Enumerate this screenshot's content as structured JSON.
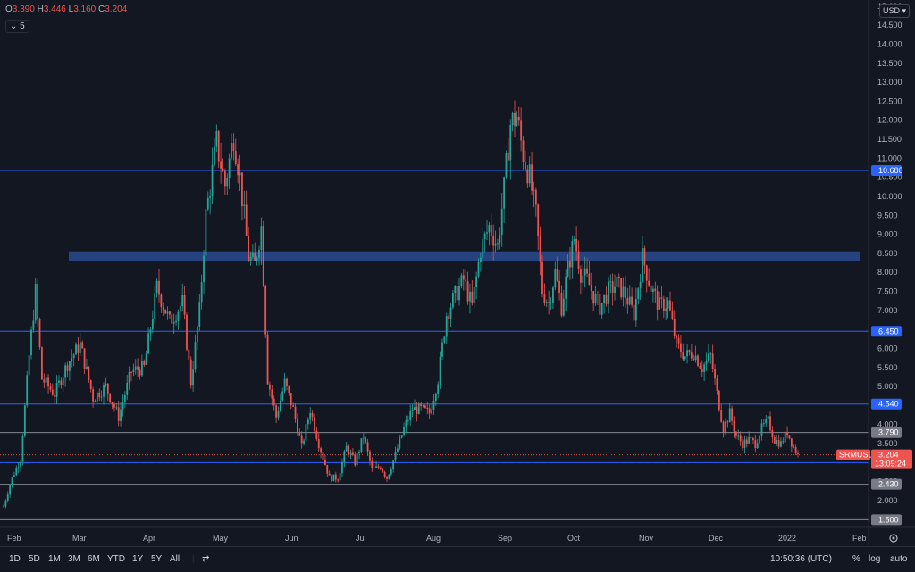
{
  "header": {
    "o_label": "O",
    "o_value": "3.390",
    "h_label": "H",
    "h_value": "3.446",
    "l_label": "L",
    "l_value": "3.160",
    "c_label": "C",
    "c_value": "3.204",
    "indicator_count": "5",
    "currency": "USD"
  },
  "bottom_bar": {
    "ranges": [
      "1D",
      "5D",
      "1M",
      "3M",
      "6M",
      "YTD",
      "1Y",
      "5Y",
      "All"
    ],
    "time": "10:50:36 (UTC)",
    "percent": "%",
    "log": "log",
    "auto": "auto"
  },
  "colors": {
    "background": "#131722",
    "up": "#26a69a",
    "down": "#ef5350",
    "hline": "#2962ff",
    "zone": "#2a4a8f",
    "grey_line": "#9598a1"
  },
  "chart_data": {
    "type": "candlestick",
    "symbol": "SRMUSD",
    "last_price": "3.204",
    "countdown": "13:09:24",
    "y_ticks": [
      "15.000",
      "14.500",
      "14.000",
      "13.500",
      "13.000",
      "12.500",
      "12.000",
      "11.500",
      "11.000",
      "10.500",
      "10.000",
      "9.500",
      "9.000",
      "8.500",
      "8.000",
      "7.500",
      "7.000",
      "6.500",
      "6.000",
      "5.500",
      "5.000",
      "4.500",
      "4.000",
      "3.500",
      "3.000",
      "2.500",
      "2.000",
      "1.500"
    ],
    "x_ticks": [
      "Feb",
      "Mar",
      "Apr",
      "May",
      "Jun",
      "Jul",
      "Aug",
      "Sep",
      "Oct",
      "Nov",
      "Dec",
      "2022",
      "Feb"
    ],
    "blue_levels": [
      {
        "value": 10.68,
        "label": "10.680"
      },
      {
        "value": 6.45,
        "label": "6.450"
      },
      {
        "value": 4.54,
        "label": "4.540"
      },
      {
        "value": 3.0,
        "label": "3.000"
      }
    ],
    "grey_levels": [
      {
        "value": 3.79,
        "label": "3.790"
      },
      {
        "value": 2.43,
        "label": "2.430"
      },
      {
        "value": 1.5,
        "label": "1.500"
      }
    ],
    "zone": {
      "from": 8.3,
      "to": 8.55
    },
    "monthly_closes": [
      {
        "month": "Feb",
        "value": 2.0
      },
      {
        "month": "Mar",
        "value": 6.2
      },
      {
        "month": "Apr",
        "value": 7.6
      },
      {
        "month": "May",
        "value": 10.5
      },
      {
        "month": "Jun",
        "value": 4.2
      },
      {
        "month": "Jul",
        "value": 2.8
      },
      {
        "month": "Aug",
        "value": 4.6
      },
      {
        "month": "Sep",
        "value": 10.6
      },
      {
        "month": "Oct",
        "value": 8.0
      },
      {
        "month": "Nov",
        "value": 8.2
      },
      {
        "month": "Dec",
        "value": 4.0
      },
      {
        "month": "2022",
        "value": 3.2
      }
    ],
    "path": [
      [
        0,
        1.85
      ],
      [
        4,
        2.6
      ],
      [
        8,
        3.1
      ],
      [
        12,
        5.8
      ],
      [
        15,
        7.5
      ],
      [
        18,
        5.2
      ],
      [
        24,
        4.8
      ],
      [
        30,
        5.6
      ],
      [
        36,
        6.1
      ],
      [
        42,
        4.7
      ],
      [
        48,
        5.0
      ],
      [
        54,
        4.2
      ],
      [
        60,
        5.4
      ],
      [
        66,
        5.5
      ],
      [
        72,
        7.6
      ],
      [
        78,
        6.7
      ],
      [
        84,
        7.2
      ],
      [
        88,
        5.1
      ],
      [
        92,
        7.0
      ],
      [
        95,
        9.5
      ],
      [
        100,
        11.4
      ],
      [
        104,
        10.3
      ],
      [
        108,
        11.6
      ],
      [
        111,
        10.5
      ],
      [
        115,
        8.4
      ],
      [
        118,
        8.2
      ],
      [
        121,
        9.2
      ],
      [
        124,
        5.2
      ],
      [
        128,
        4.2
      ],
      [
        132,
        5.1
      ],
      [
        136,
        4.4
      ],
      [
        140,
        3.4
      ],
      [
        144,
        4.4
      ],
      [
        148,
        3.5
      ],
      [
        153,
        2.6
      ],
      [
        157,
        2.6
      ],
      [
        161,
        3.4
      ],
      [
        165,
        3.0
      ],
      [
        169,
        3.7
      ],
      [
        173,
        2.8
      ],
      [
        177,
        2.9
      ],
      [
        180,
        2.6
      ],
      [
        184,
        3.2
      ],
      [
        188,
        3.9
      ],
      [
        192,
        4.4
      ],
      [
        196,
        4.4
      ],
      [
        200,
        4.3
      ],
      [
        204,
        5.2
      ],
      [
        208,
        6.9
      ],
      [
        212,
        7.4
      ],
      [
        216,
        7.8
      ],
      [
        220,
        7.1
      ],
      [
        224,
        8.6
      ],
      [
        228,
        9.2
      ],
      [
        232,
        8.7
      ],
      [
        235,
        10.2
      ],
      [
        238,
        11.9
      ],
      [
        241,
        12.1
      ],
      [
        244,
        11.1
      ],
      [
        247,
        10.5
      ],
      [
        250,
        9.5
      ],
      [
        253,
        7.5
      ],
      [
        256,
        7.2
      ],
      [
        259,
        8.0
      ],
      [
        262,
        7.1
      ],
      [
        265,
        8.1
      ],
      [
        268,
        8.9
      ],
      [
        271,
        8.0
      ],
      [
        274,
        7.8
      ],
      [
        277,
        7.4
      ],
      [
        280,
        7.1
      ],
      [
        284,
        7.5
      ],
      [
        288,
        7.7
      ],
      [
        292,
        7.4
      ],
      [
        296,
        6.9
      ],
      [
        300,
        8.4
      ],
      [
        304,
        7.6
      ],
      [
        308,
        7.1
      ],
      [
        312,
        7.2
      ],
      [
        316,
        6.1
      ],
      [
        320,
        5.8
      ],
      [
        324,
        5.9
      ],
      [
        328,
        5.5
      ],
      [
        332,
        5.8
      ],
      [
        335,
        4.8
      ],
      [
        338,
        3.9
      ],
      [
        341,
        4.3
      ],
      [
        344,
        3.7
      ],
      [
        347,
        3.5
      ],
      [
        350,
        3.6
      ],
      [
        353,
        3.5
      ],
      [
        356,
        3.9
      ],
      [
        359,
        4.1
      ],
      [
        362,
        3.6
      ],
      [
        365,
        3.5
      ],
      [
        368,
        3.8
      ],
      [
        371,
        3.4
      ],
      [
        373,
        3.2
      ]
    ]
  }
}
